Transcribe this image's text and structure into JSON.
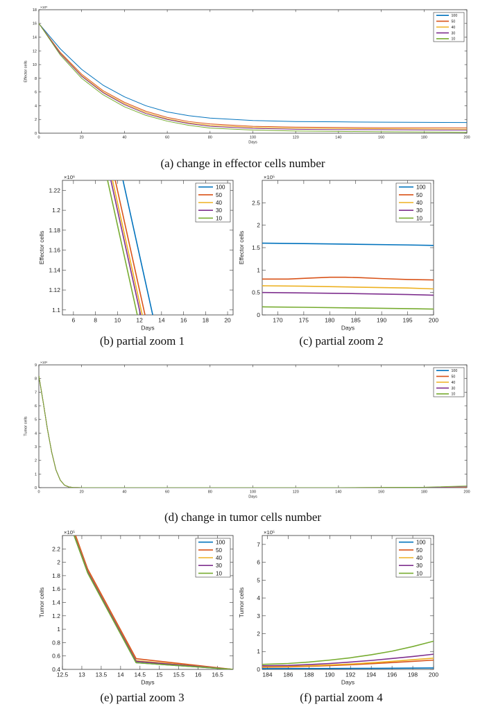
{
  "colors": {
    "100": "#0072BD",
    "50": "#D95319",
    "40": "#EDB120",
    "30": "#7E2F8E",
    "10": "#77AC30"
  },
  "chart_data": [
    {
      "id": "a",
      "type": "line",
      "caption": "(a) change in effector cells number",
      "xlabel": "Days",
      "ylabel": "Effector cells",
      "exponent": "×10⁵",
      "xlim": [
        0,
        200
      ],
      "ylim": [
        0,
        18
      ],
      "xticks": [
        0,
        20,
        40,
        60,
        80,
        100,
        120,
        140,
        160,
        180,
        200
      ],
      "xticklabels": [
        "0",
        "20",
        "40",
        "60",
        "80",
        "100",
        "120",
        "140",
        "160",
        "180",
        "200"
      ],
      "yticks": [
        0,
        2,
        4,
        6,
        8,
        10,
        12,
        14,
        16,
        18
      ],
      "yticklabels": [
        "0",
        "2",
        "4",
        "6",
        "8",
        "10",
        "12",
        "14",
        "16",
        "18"
      ],
      "legend": [
        "100",
        "50",
        "40",
        "30",
        "10"
      ],
      "legend_pos": "top-right",
      "series": [
        {
          "name": "100",
          "x": [
            0,
            10,
            20,
            30,
            40,
            50,
            60,
            70,
            80,
            100,
            120,
            140,
            160,
            180,
            200
          ],
          "y": [
            16,
            12.3,
            9.3,
            7.0,
            5.3,
            4.0,
            3.1,
            2.55,
            2.2,
            1.85,
            1.7,
            1.65,
            1.6,
            1.58,
            1.55
          ]
        },
        {
          "name": "50",
          "x": [
            0,
            10,
            20,
            30,
            40,
            50,
            60,
            70,
            80,
            100,
            120,
            140,
            160,
            180,
            200
          ],
          "y": [
            16,
            11.8,
            8.6,
            6.2,
            4.5,
            3.2,
            2.3,
            1.7,
            1.35,
            1.0,
            0.88,
            0.83,
            0.8,
            0.8,
            0.78
          ]
        },
        {
          "name": "40",
          "x": [
            0,
            10,
            20,
            30,
            40,
            50,
            60,
            70,
            80,
            100,
            120,
            140,
            160,
            180,
            200
          ],
          "y": [
            16,
            11.7,
            8.4,
            6.0,
            4.3,
            3.0,
            2.1,
            1.5,
            1.15,
            0.85,
            0.72,
            0.68,
            0.65,
            0.62,
            0.58
          ]
        },
        {
          "name": "30",
          "x": [
            0,
            10,
            20,
            30,
            40,
            50,
            60,
            70,
            80,
            100,
            120,
            140,
            160,
            180,
            200
          ],
          "y": [
            16,
            11.6,
            8.3,
            5.9,
            4.15,
            2.85,
            2.0,
            1.4,
            1.0,
            0.7,
            0.57,
            0.52,
            0.5,
            0.47,
            0.44
          ]
        },
        {
          "name": "10",
          "x": [
            0,
            10,
            20,
            30,
            40,
            50,
            60,
            70,
            80,
            100,
            120,
            140,
            160,
            180,
            200
          ],
          "y": [
            16,
            11.4,
            8.0,
            5.6,
            3.85,
            2.6,
            1.75,
            1.15,
            0.75,
            0.45,
            0.32,
            0.26,
            0.22,
            0.18,
            0.13
          ]
        }
      ]
    },
    {
      "id": "b",
      "type": "line",
      "caption": "(b) partial zoom 1",
      "xlabel": "Days",
      "ylabel": "Effector cells",
      "exponent": "×10⁶",
      "xlim": [
        5,
        20.5
      ],
      "ylim": [
        1.095,
        1.23
      ],
      "xticks": [
        6,
        8,
        10,
        12,
        14,
        16,
        18,
        20
      ],
      "xticklabels": [
        "6",
        "8",
        "10",
        "12",
        "14",
        "16",
        "18",
        "20"
      ],
      "yticks": [
        1.1,
        1.12,
        1.14,
        1.16,
        1.18,
        1.2,
        1.22
      ],
      "yticklabels": [
        "1.1",
        "1.12",
        "1.14",
        "1.16",
        "1.18",
        "1.2",
        "1.22"
      ],
      "legend": [
        "100",
        "50",
        "40",
        "30",
        "10"
      ],
      "legend_pos": "top-right",
      "series": [
        {
          "name": "100",
          "x": [
            10.5,
            13.2
          ],
          "y": [
            1.23,
            1.095
          ]
        },
        {
          "name": "50",
          "x": [
            9.8,
            12.5
          ],
          "y": [
            1.23,
            1.095
          ]
        },
        {
          "name": "40",
          "x": [
            9.55,
            12.25
          ],
          "y": [
            1.23,
            1.095
          ]
        },
        {
          "name": "30",
          "x": [
            9.4,
            12.1
          ],
          "y": [
            1.23,
            1.095
          ]
        },
        {
          "name": "10",
          "x": [
            9.1,
            11.8
          ],
          "y": [
            1.23,
            1.095
          ]
        }
      ]
    },
    {
      "id": "c",
      "type": "line",
      "caption": "(c) partial zoom 2",
      "xlabel": "Days",
      "ylabel": "Effector cells",
      "exponent": "×10⁵",
      "xlim": [
        167,
        200
      ],
      "ylim": [
        0,
        3
      ],
      "xticks": [
        170,
        175,
        180,
        185,
        190,
        195,
        200
      ],
      "xticklabels": [
        "170",
        "175",
        "180",
        "185",
        "190",
        "195",
        "200"
      ],
      "yticks": [
        0,
        0.5,
        1,
        1.5,
        2,
        2.5
      ],
      "yticklabels": [
        "0",
        "0.5",
        "1",
        "1.5",
        "2",
        "2.5"
      ],
      "legend": [
        "100",
        "50",
        "40",
        "30",
        "10"
      ],
      "legend_pos": "top-right",
      "series": [
        {
          "name": "100",
          "x": [
            167,
            175,
            185,
            195,
            200
          ],
          "y": [
            1.6,
            1.59,
            1.575,
            1.56,
            1.55
          ]
        },
        {
          "name": "50",
          "x": [
            167,
            172,
            176,
            180,
            183,
            186,
            190,
            195,
            200
          ],
          "y": [
            0.8,
            0.8,
            0.82,
            0.84,
            0.84,
            0.83,
            0.81,
            0.79,
            0.78
          ]
        },
        {
          "name": "40",
          "x": [
            167,
            175,
            185,
            195,
            200
          ],
          "y": [
            0.65,
            0.64,
            0.62,
            0.6,
            0.58
          ]
        },
        {
          "name": "30",
          "x": [
            167,
            175,
            185,
            195,
            200
          ],
          "y": [
            0.5,
            0.49,
            0.475,
            0.455,
            0.44
          ]
        },
        {
          "name": "10",
          "x": [
            167,
            175,
            185,
            195,
            200
          ],
          "y": [
            0.18,
            0.17,
            0.155,
            0.14,
            0.13
          ]
        }
      ]
    },
    {
      "id": "d",
      "type": "line",
      "caption": "(d) change in tumor cells number",
      "xlabel": "Days",
      "ylabel": "Tumor cells",
      "exponent": "×10⁶",
      "xlim": [
        0,
        200
      ],
      "ylim": [
        0,
        9
      ],
      "xticks": [
        0,
        20,
        40,
        60,
        80,
        100,
        120,
        140,
        160,
        180,
        200
      ],
      "xticklabels": [
        "0",
        "20",
        "40",
        "60",
        "80",
        "100",
        "120",
        "140",
        "160",
        "180",
        "200"
      ],
      "yticks": [
        0,
        1,
        2,
        3,
        4,
        5,
        6,
        7,
        8,
        9
      ],
      "yticklabels": [
        "0",
        "1",
        "2",
        "3",
        "4",
        "5",
        "6",
        "7",
        "8",
        "9"
      ],
      "legend": [
        "100",
        "50",
        "40",
        "30",
        "10"
      ],
      "legend_pos": "top-right",
      "series": [
        {
          "name": "100",
          "x": [
            0,
            2,
            4,
            6,
            8,
            10,
            12,
            14,
            16,
            20,
            60,
            100,
            140,
            180,
            200
          ],
          "y": [
            8.2,
            6.3,
            4.3,
            2.6,
            1.3,
            0.55,
            0.18,
            0.05,
            0.01,
            0,
            0,
            0,
            0,
            0,
            0
          ]
        },
        {
          "name": "50",
          "x": [
            0,
            2,
            4,
            6,
            8,
            10,
            12,
            14,
            16,
            20,
            60,
            100,
            140,
            180,
            200
          ],
          "y": [
            8.2,
            6.3,
            4.3,
            2.6,
            1.3,
            0.55,
            0.18,
            0.05,
            0.01,
            0,
            0,
            0,
            0,
            0.01,
            0.02
          ]
        },
        {
          "name": "40",
          "x": [
            0,
            2,
            4,
            6,
            8,
            10,
            12,
            14,
            16,
            20,
            60,
            100,
            140,
            180,
            200
          ],
          "y": [
            8.2,
            6.3,
            4.3,
            2.6,
            1.3,
            0.55,
            0.18,
            0.05,
            0.01,
            0,
            0,
            0,
            0,
            0.01,
            0.03
          ]
        },
        {
          "name": "30",
          "x": [
            0,
            2,
            4,
            6,
            8,
            10,
            12,
            14,
            16,
            20,
            60,
            100,
            140,
            180,
            200
          ],
          "y": [
            8.2,
            6.3,
            4.3,
            2.6,
            1.3,
            0.55,
            0.18,
            0.05,
            0.01,
            0,
            0,
            0,
            0,
            0.01,
            0.06
          ]
        },
        {
          "name": "10",
          "x": [
            0,
            2,
            4,
            6,
            8,
            10,
            12,
            14,
            16,
            20,
            60,
            100,
            140,
            180,
            200
          ],
          "y": [
            8.2,
            6.3,
            4.3,
            2.6,
            1.3,
            0.55,
            0.18,
            0.05,
            0.01,
            0,
            0,
            0,
            0,
            0.03,
            0.12
          ]
        }
      ]
    },
    {
      "id": "e",
      "type": "line",
      "caption": "(e) partial zoom 3",
      "xlabel": "Days",
      "ylabel": "Tumor cells",
      "exponent": "×10⁵",
      "xlim": [
        12.5,
        16.9
      ],
      "ylim": [
        0.4,
        2.4
      ],
      "xticks": [
        12.5,
        13,
        13.5,
        14,
        14.5,
        15,
        15.5,
        16,
        16.5
      ],
      "xticklabels": [
        "12.5",
        "13",
        "13.5",
        "14",
        "14.5",
        "15",
        "15.5",
        "16",
        "16.5"
      ],
      "yticks": [
        0.4,
        0.6,
        0.8,
        1,
        1.2,
        1.4,
        1.6,
        1.8,
        2,
        2.2
      ],
      "yticklabels": [
        "0.4",
        "0.6",
        "0.8",
        "1",
        "1.2",
        "1.4",
        "1.6",
        "1.8",
        "2",
        "2.2"
      ],
      "legend": [
        "100",
        "50",
        "40",
        "30",
        "10"
      ],
      "legend_pos": "top-right",
      "series": [
        {
          "name": "100",
          "x": [
            12.8,
            13.15,
            14.4,
            16.9
          ],
          "y": [
            2.4,
            1.85,
            0.5,
            0.4
          ]
        },
        {
          "name": "50",
          "x": [
            12.84,
            13.15,
            14.4,
            16.9
          ],
          "y": [
            2.4,
            1.9,
            0.56,
            0.4
          ]
        },
        {
          "name": "40",
          "x": [
            12.82,
            13.15,
            14.4,
            16.9
          ],
          "y": [
            2.4,
            1.87,
            0.53,
            0.4
          ]
        },
        {
          "name": "30",
          "x": [
            12.81,
            13.15,
            14.4,
            16.9
          ],
          "y": [
            2.4,
            1.86,
            0.52,
            0.4
          ]
        },
        {
          "name": "10",
          "x": [
            12.8,
            13.15,
            14.4,
            16.9
          ],
          "y": [
            2.4,
            1.84,
            0.5,
            0.4
          ]
        }
      ]
    },
    {
      "id": "f",
      "type": "line",
      "caption": "(f) partial zoom 4",
      "xlabel": "Days",
      "ylabel": "Tumor cells",
      "exponent": "×10⁵",
      "xlim": [
        183.5,
        200
      ],
      "ylim": [
        0,
        7.5
      ],
      "xticks": [
        184,
        186,
        188,
        190,
        192,
        194,
        196,
        198,
        200
      ],
      "xticklabels": [
        "184",
        "186",
        "188",
        "190",
        "192",
        "194",
        "196",
        "198",
        "200"
      ],
      "yticks": [
        0,
        1,
        2,
        3,
        4,
        5,
        6,
        7
      ],
      "yticklabels": [
        "0",
        "1",
        "2",
        "3",
        "4",
        "5",
        "6",
        "7"
      ],
      "legend": [
        "100",
        "50",
        "40",
        "30",
        "10"
      ],
      "legend_pos": "top-right",
      "series": [
        {
          "name": "100",
          "x": [
            183.5,
            190,
            195,
            200
          ],
          "y": [
            0.04,
            0.05,
            0.06,
            0.08
          ]
        },
        {
          "name": "50",
          "x": [
            183.5,
            186,
            188,
            190,
            192,
            194,
            196,
            198,
            200
          ],
          "y": [
            0.12,
            0.14,
            0.17,
            0.21,
            0.26,
            0.32,
            0.38,
            0.45,
            0.52
          ]
        },
        {
          "name": "40",
          "x": [
            183.5,
            186,
            188,
            190,
            192,
            194,
            196,
            198,
            200
          ],
          "y": [
            0.15,
            0.17,
            0.2,
            0.25,
            0.3,
            0.37,
            0.45,
            0.54,
            0.63
          ]
        },
        {
          "name": "30",
          "x": [
            183.5,
            186,
            188,
            190,
            192,
            194,
            196,
            198,
            200
          ],
          "y": [
            0.2,
            0.22,
            0.27,
            0.33,
            0.41,
            0.5,
            0.61,
            0.72,
            0.85
          ]
        },
        {
          "name": "10",
          "x": [
            183.5,
            186,
            188,
            190,
            192,
            194,
            196,
            198,
            200
          ],
          "y": [
            0.28,
            0.33,
            0.41,
            0.52,
            0.65,
            0.82,
            1.02,
            1.28,
            1.58
          ]
        }
      ]
    }
  ]
}
